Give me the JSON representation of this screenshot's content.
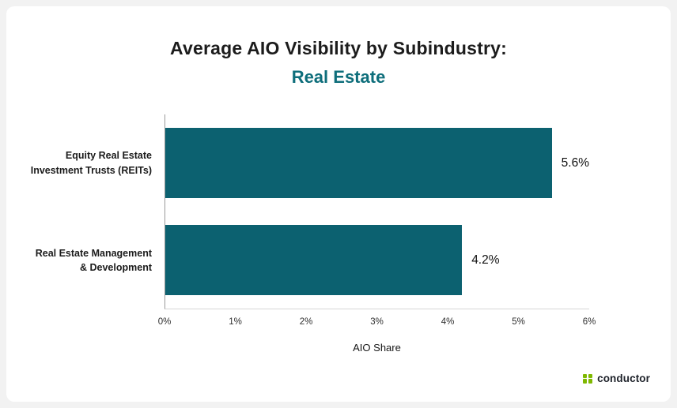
{
  "chart_data": {
    "type": "bar",
    "orientation": "horizontal",
    "title": "Average AIO Visibility by Subindustry:",
    "subtitle": "Real Estate",
    "categories": [
      "Equity Real Estate Investment Trusts (REITs)",
      "Real Estate Management & Development"
    ],
    "category_lines": [
      [
        "Equity Real Estate",
        "Investment Trusts (REITs)"
      ],
      [
        "Real Estate Management",
        "& Development"
      ]
    ],
    "values": [
      5.6,
      4.2
    ],
    "value_labels": [
      "5.6%",
      "4.2%"
    ],
    "xlabel": "AIO Share",
    "xlim": [
      0,
      6
    ],
    "x_ticks": [
      "0%",
      "1%",
      "2%",
      "3%",
      "4%",
      "5%",
      "6%"
    ],
    "grid": false,
    "legend": "none",
    "bar_color": "#0c6170"
  },
  "colors": {
    "subtitle_teal": "#0e6e7b",
    "bar_teal": "#0c6170",
    "logo_green": "#7fb800",
    "title_text": "#1c1c1c"
  },
  "branding": {
    "wordmark": "conductor"
  }
}
